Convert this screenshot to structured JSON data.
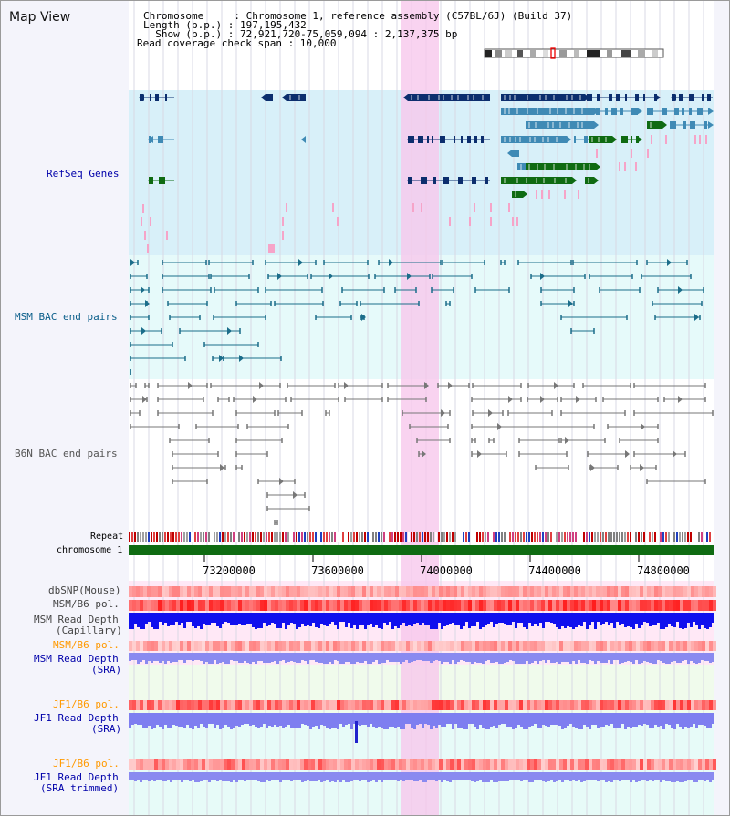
{
  "view": {
    "title": "Map View"
  },
  "info": {
    "chromosome": "Chromosome     : Chromosome 1, reference assembly (C57BL/6J) (Build 37)",
    "length": "Length (b.p.) : 197,195,432",
    "show": "  Show (b.p.) : 72,921,720-75,059,094 : 2,137,375 bp",
    "coverage": "Read coverage check span : 10,000"
  },
  "tracks": {
    "refseq": "RefSeq Genes",
    "msm_bac": "MSM BAC end pairs",
    "b6n_bac": "B6N BAC end pairs",
    "repeat": "Repeat",
    "chromosome": "chromosome 1",
    "dbsnp": "dbSNP(Mouse)",
    "msm_pol": "MSM/B6 pol.",
    "msm_depth_cap_1": "MSM Read Depth",
    "msm_depth_cap_2": "(Capillary)",
    "msm_pol_2": "MSM/B6 pol.",
    "msm_depth_sra_1": "MSM Read Depth",
    "msm_depth_sra_2": "(SRA)",
    "jf1_pol_1": "JF1/B6 pol.",
    "jf1_depth_sra_1": "JF1 Read Depth",
    "jf1_depth_sra_2": "(SRA)",
    "jf1_pol_2": "JF1/B6 pol.",
    "jf1_depth_trim_1": "JF1 Read Depth",
    "jf1_depth_trim_2": "(SRA trimmed)"
  },
  "axis": {
    "ticks": [
      "73200000",
      "73600000",
      "74000000",
      "74400000",
      "74800000"
    ]
  },
  "colors": {
    "refseq_dark": "#0c2e6e",
    "refseq_mid": "#3f8ab5",
    "refseq_green": "#0f6b12",
    "msm_bac": "#1b6d8a",
    "b6n_bac": "#777777",
    "label_blue": "#0000aa",
    "label_orange": "#ff9900",
    "chromosome_bar": "#0f6b12"
  }
}
